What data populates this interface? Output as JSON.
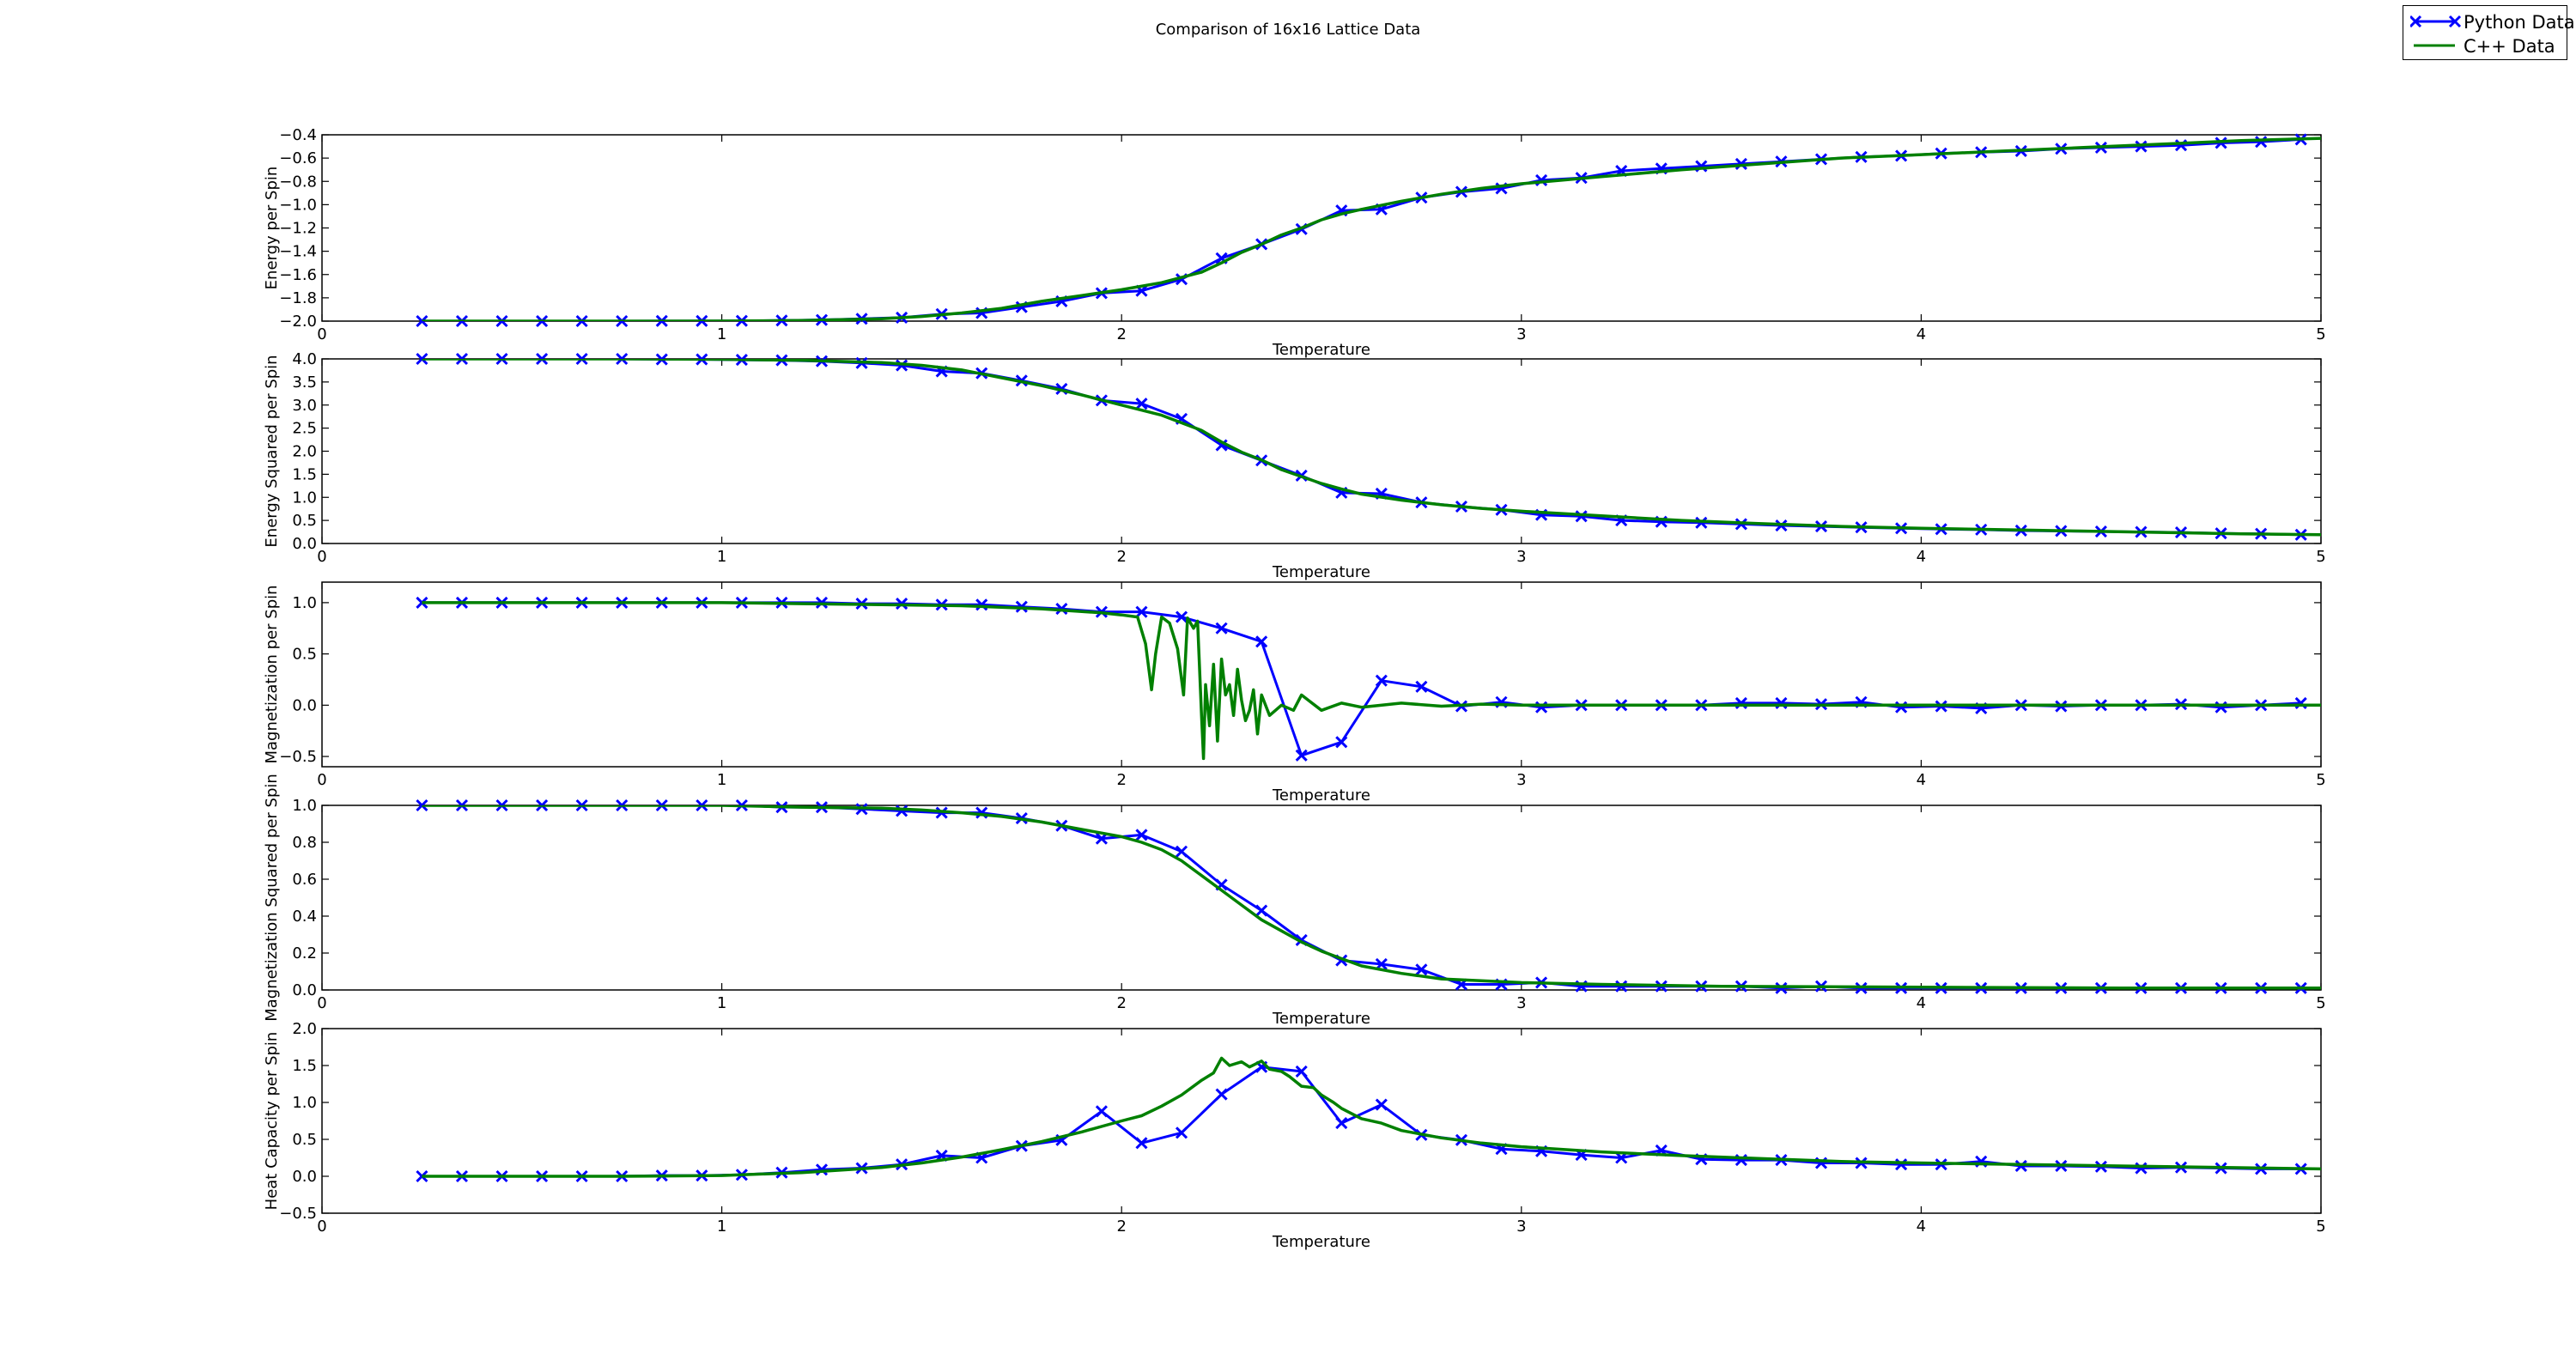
{
  "figure": {
    "title": "Comparison of 16x16 Lattice Data"
  },
  "legend": {
    "placement": "upper-right",
    "entries": [
      {
        "label": "Python Data",
        "color": "#0000ff",
        "marker": "x"
      },
      {
        "label": "C++ Data",
        "color": "#008000",
        "marker": "none"
      }
    ]
  },
  "chart_data": [
    {
      "type": "line",
      "xlabel": "Temperature",
      "ylabel": "Energy per Spin",
      "xlim": [
        0,
        5
      ],
      "ylim": [
        -2.0,
        -0.4
      ],
      "xticks": [
        "0",
        "1",
        "2",
        "3",
        "4",
        "5"
      ],
      "yticks": [
        "-2.0",
        "-1.8",
        "-1.6",
        "-1.4",
        "-1.2",
        "-1.0",
        "-0.8",
        "-0.6",
        "-0.4"
      ],
      "series": [
        {
          "name": "Python Data",
          "x": [
            0.25,
            0.35,
            0.45,
            0.55,
            0.65,
            0.75,
            0.85,
            0.95,
            1.05,
            1.15,
            1.25,
            1.35,
            1.45,
            1.55,
            1.65,
            1.75,
            1.85,
            1.95,
            2.05,
            2.15,
            2.25,
            2.35,
            2.45,
            2.55,
            2.65,
            2.75,
            2.85,
            2.95,
            3.05,
            3.15,
            3.25,
            3.35,
            3.45,
            3.55,
            3.65,
            3.75,
            3.85,
            3.95,
            4.05,
            4.15,
            4.25,
            4.35,
            4.45,
            4.55,
            4.65,
            4.75,
            4.85,
            4.95
          ],
          "y": [
            -2.0,
            -2.0,
            -2.0,
            -2.0,
            -2.0,
            -2.0,
            -1.999,
            -1.999,
            -1.998,
            -1.995,
            -1.99,
            -1.98,
            -1.97,
            -1.94,
            -1.93,
            -1.88,
            -1.83,
            -1.76,
            -1.74,
            -1.64,
            -1.46,
            -1.34,
            -1.21,
            -1.05,
            -1.04,
            -0.94,
            -0.89,
            -0.86,
            -0.79,
            -0.77,
            -0.71,
            -0.69,
            -0.67,
            -0.65,
            -0.63,
            -0.61,
            -0.59,
            -0.58,
            -0.56,
            -0.55,
            -0.54,
            -0.52,
            -0.51,
            -0.5,
            -0.49,
            -0.47,
            -0.46,
            -0.44
          ]
        },
        {
          "name": "C++ Data",
          "x": [
            0.25,
            0.5,
            0.75,
            1.0,
            1.2,
            1.4,
            1.5,
            1.6,
            1.7,
            1.8,
            1.9,
            2.0,
            2.1,
            2.2,
            2.25,
            2.3,
            2.35,
            2.4,
            2.45,
            2.5,
            2.55,
            2.6,
            2.7,
            2.8,
            2.9,
            3.0,
            3.2,
            3.4,
            3.6,
            3.8,
            4.0,
            4.2,
            4.4,
            4.6,
            4.8,
            5.0
          ],
          "y": [
            -2.0,
            -2.0,
            -2.0,
            -1.999,
            -1.995,
            -1.98,
            -1.96,
            -1.93,
            -1.89,
            -1.83,
            -1.78,
            -1.73,
            -1.67,
            -1.58,
            -1.5,
            -1.41,
            -1.34,
            -1.26,
            -1.2,
            -1.13,
            -1.08,
            -1.04,
            -0.97,
            -0.91,
            -0.86,
            -0.82,
            -0.76,
            -0.7,
            -0.65,
            -0.6,
            -0.57,
            -0.54,
            -0.51,
            -0.48,
            -0.45,
            -0.43
          ]
        }
      ]
    },
    {
      "type": "line",
      "xlabel": "Temperature",
      "ylabel": "Energy Squared per Spin",
      "xlim": [
        0,
        5
      ],
      "ylim": [
        0.0,
        4.0
      ],
      "xticks": [
        "0",
        "1",
        "2",
        "3",
        "4",
        "5"
      ],
      "yticks": [
        "0.0",
        "0.5",
        "1.0",
        "1.5",
        "2.0",
        "2.5",
        "3.0",
        "3.5",
        "4.0"
      ],
      "series": [
        {
          "name": "Python Data",
          "x": [
            0.25,
            0.35,
            0.45,
            0.55,
            0.65,
            0.75,
            0.85,
            0.95,
            1.05,
            1.15,
            1.25,
            1.35,
            1.45,
            1.55,
            1.65,
            1.75,
            1.85,
            1.95,
            2.05,
            2.15,
            2.25,
            2.35,
            2.45,
            2.55,
            2.65,
            2.75,
            2.85,
            2.95,
            3.05,
            3.15,
            3.25,
            3.35,
            3.45,
            3.55,
            3.65,
            3.75,
            3.85,
            3.95,
            4.05,
            4.15,
            4.25,
            4.35,
            4.45,
            4.55,
            4.65,
            4.75,
            4.85,
            4.95
          ],
          "y": [
            4.0,
            4.0,
            4.0,
            4.0,
            4.0,
            4.0,
            3.99,
            3.99,
            3.98,
            3.97,
            3.95,
            3.91,
            3.86,
            3.73,
            3.69,
            3.53,
            3.35,
            3.1,
            3.03,
            2.7,
            2.13,
            1.8,
            1.47,
            1.1,
            1.08,
            0.89,
            0.8,
            0.73,
            0.62,
            0.59,
            0.5,
            0.47,
            0.45,
            0.42,
            0.39,
            0.37,
            0.35,
            0.33,
            0.31,
            0.3,
            0.28,
            0.27,
            0.26,
            0.25,
            0.24,
            0.22,
            0.21,
            0.19
          ]
        },
        {
          "name": "C++ Data",
          "x": [
            0.25,
            0.5,
            0.75,
            1.0,
            1.2,
            1.4,
            1.5,
            1.6,
            1.7,
            1.8,
            1.9,
            2.0,
            2.1,
            2.2,
            2.25,
            2.3,
            2.35,
            2.4,
            2.45,
            2.5,
            2.55,
            2.6,
            2.7,
            2.8,
            2.9,
            3.0,
            3.2,
            3.4,
            3.6,
            3.8,
            4.0,
            4.2,
            4.4,
            4.6,
            4.8,
            5.0
          ],
          "y": [
            4.0,
            4.0,
            4.0,
            3.99,
            3.97,
            3.92,
            3.86,
            3.76,
            3.59,
            3.42,
            3.22,
            3.0,
            2.78,
            2.45,
            2.2,
            1.98,
            1.81,
            1.6,
            1.45,
            1.3,
            1.18,
            1.07,
            0.94,
            0.84,
            0.76,
            0.7,
            0.6,
            0.5,
            0.43,
            0.37,
            0.33,
            0.3,
            0.27,
            0.24,
            0.21,
            0.19
          ]
        }
      ]
    },
    {
      "type": "line",
      "xlabel": "Temperature",
      "ylabel": "Magnetization per Spin",
      "xlim": [
        0,
        5
      ],
      "ylim": [
        -0.6,
        1.2
      ],
      "xticks": [
        "0",
        "1",
        "2",
        "3",
        "4",
        "5"
      ],
      "yticks": [
        "-0.5",
        "0.0",
        "0.5",
        "1.0"
      ],
      "series": [
        {
          "name": "Python Data",
          "x": [
            0.25,
            0.35,
            0.45,
            0.55,
            0.65,
            0.75,
            0.85,
            0.95,
            1.05,
            1.15,
            1.25,
            1.35,
            1.45,
            1.55,
            1.65,
            1.75,
            1.85,
            1.95,
            2.05,
            2.15,
            2.25,
            2.35,
            2.45,
            2.55,
            2.65,
            2.75,
            2.85,
            2.95,
            3.05,
            3.15,
            3.25,
            3.35,
            3.45,
            3.55,
            3.65,
            3.75,
            3.85,
            3.95,
            4.05,
            4.15,
            4.25,
            4.35,
            4.45,
            4.55,
            4.65,
            4.75,
            4.85,
            4.95
          ],
          "y": [
            1.0,
            1.0,
            1.0,
            1.0,
            1.0,
            1.0,
            1.0,
            1.0,
            1.0,
            1.0,
            1.0,
            0.99,
            0.99,
            0.98,
            0.98,
            0.96,
            0.94,
            0.91,
            0.91,
            0.86,
            0.75,
            0.62,
            -0.49,
            -0.36,
            0.24,
            0.18,
            -0.01,
            0.03,
            -0.02,
            0.0,
            0.0,
            0.0,
            0.0,
            0.02,
            0.02,
            0.01,
            0.03,
            -0.02,
            -0.01,
            -0.03,
            0.0,
            -0.01,
            0.0,
            0.0,
            0.01,
            -0.02,
            0.0,
            0.02
          ]
        },
        {
          "name": "C++ Data",
          "x": [
            0.25,
            0.5,
            0.75,
            1.0,
            1.2,
            1.4,
            1.6,
            1.8,
            1.95,
            2.0,
            2.04,
            2.06,
            2.075,
            2.085,
            2.1,
            2.12,
            2.14,
            2.155,
            2.165,
            2.18,
            2.19,
            2.2,
            2.205,
            2.21,
            2.22,
            2.23,
            2.24,
            2.25,
            2.26,
            2.27,
            2.28,
            2.29,
            2.3,
            2.31,
            2.32,
            2.33,
            2.34,
            2.35,
            2.37,
            2.4,
            2.43,
            2.45,
            2.5,
            2.55,
            2.6,
            2.7,
            2.8,
            2.9,
            3.0,
            3.2,
            3.5,
            4.0,
            4.5,
            5.0
          ],
          "y": [
            1.0,
            1.0,
            1.0,
            1.0,
            0.99,
            0.98,
            0.97,
            0.94,
            0.9,
            0.88,
            0.86,
            0.6,
            0.15,
            0.5,
            0.86,
            0.8,
            0.55,
            0.1,
            0.85,
            0.75,
            0.82,
            -0.1,
            -0.52,
            0.2,
            -0.2,
            0.4,
            -0.35,
            0.45,
            0.1,
            0.2,
            -0.1,
            0.35,
            0.05,
            -0.15,
            -0.05,
            0.15,
            -0.28,
            0.1,
            -0.1,
            0.0,
            -0.05,
            0.1,
            -0.05,
            0.02,
            -0.02,
            0.02,
            -0.01,
            0.01,
            0.0,
            0.0,
            0.0,
            0.0,
            0.0,
            0.0
          ]
        }
      ]
    },
    {
      "type": "line",
      "xlabel": "Temperature",
      "ylabel": "Magnetization Squared per Spin",
      "xlim": [
        0,
        5
      ],
      "ylim": [
        0.0,
        1.0
      ],
      "xticks": [
        "0",
        "1",
        "2",
        "3",
        "4",
        "5"
      ],
      "yticks": [
        "0.0",
        "0.2",
        "0.4",
        "0.6",
        "0.8",
        "1.0"
      ],
      "series": [
        {
          "name": "Python Data",
          "x": [
            0.25,
            0.35,
            0.45,
            0.55,
            0.65,
            0.75,
            0.85,
            0.95,
            1.05,
            1.15,
            1.25,
            1.35,
            1.45,
            1.55,
            1.65,
            1.75,
            1.85,
            1.95,
            2.05,
            2.15,
            2.25,
            2.35,
            2.45,
            2.55,
            2.65,
            2.75,
            2.85,
            2.95,
            3.05,
            3.15,
            3.25,
            3.35,
            3.45,
            3.55,
            3.65,
            3.75,
            3.85,
            3.95,
            4.05,
            4.15,
            4.25,
            4.35,
            4.45,
            4.55,
            4.65,
            4.75,
            4.85,
            4.95
          ],
          "y": [
            1.0,
            1.0,
            1.0,
            1.0,
            1.0,
            1.0,
            1.0,
            1.0,
            1.0,
            0.99,
            0.99,
            0.98,
            0.97,
            0.96,
            0.96,
            0.93,
            0.89,
            0.82,
            0.84,
            0.75,
            0.57,
            0.43,
            0.27,
            0.16,
            0.14,
            0.11,
            0.03,
            0.03,
            0.04,
            0.02,
            0.02,
            0.02,
            0.02,
            0.02,
            0.01,
            0.02,
            0.01,
            0.01,
            0.01,
            0.01,
            0.01,
            0.01,
            0.01,
            0.01,
            0.01,
            0.01,
            0.01,
            0.01
          ]
        },
        {
          "name": "C++ Data",
          "x": [
            0.25,
            0.5,
            0.75,
            1.0,
            1.2,
            1.4,
            1.5,
            1.6,
            1.7,
            1.8,
            1.9,
            2.0,
            2.05,
            2.1,
            2.15,
            2.2,
            2.25,
            2.3,
            2.35,
            2.4,
            2.45,
            2.5,
            2.55,
            2.6,
            2.7,
            2.8,
            2.9,
            3.0,
            3.2,
            3.5,
            4.0,
            4.5,
            5.0
          ],
          "y": [
            1.0,
            1.0,
            1.0,
            1.0,
            0.99,
            0.985,
            0.975,
            0.96,
            0.94,
            0.91,
            0.87,
            0.83,
            0.8,
            0.76,
            0.7,
            0.62,
            0.54,
            0.46,
            0.38,
            0.32,
            0.26,
            0.21,
            0.17,
            0.13,
            0.09,
            0.06,
            0.05,
            0.04,
            0.03,
            0.02,
            0.015,
            0.01,
            0.01
          ]
        }
      ]
    },
    {
      "type": "line",
      "xlabel": "Temperature",
      "ylabel": "Heat Capacity per Spin",
      "xlim": [
        0,
        5
      ],
      "ylim": [
        -0.5,
        2.0
      ],
      "xticks": [
        "0",
        "1",
        "2",
        "3",
        "4",
        "5"
      ],
      "yticks": [
        "-0.5",
        "0.0",
        "0.5",
        "1.0",
        "1.5",
        "2.0"
      ],
      "series": [
        {
          "name": "Python Data",
          "x": [
            0.25,
            0.35,
            0.45,
            0.55,
            0.65,
            0.75,
            0.85,
            0.95,
            1.05,
            1.15,
            1.25,
            1.35,
            1.45,
            1.55,
            1.65,
            1.75,
            1.85,
            1.95,
            2.05,
            2.15,
            2.25,
            2.35,
            2.45,
            2.55,
            2.65,
            2.75,
            2.85,
            2.95,
            3.05,
            3.15,
            3.25,
            3.35,
            3.45,
            3.55,
            3.65,
            3.75,
            3.85,
            3.95,
            4.05,
            4.15,
            4.25,
            4.35,
            4.45,
            4.55,
            4.65,
            4.75,
            4.85,
            4.95
          ],
          "y": [
            0.0,
            0.0,
            0.0,
            0.0,
            0.0,
            0.0,
            0.01,
            0.01,
            0.02,
            0.05,
            0.09,
            0.11,
            0.16,
            0.28,
            0.25,
            0.41,
            0.49,
            0.88,
            0.45,
            0.59,
            1.11,
            1.48,
            1.42,
            0.72,
            0.97,
            0.56,
            0.49,
            0.37,
            0.34,
            0.29,
            0.25,
            0.35,
            0.23,
            0.22,
            0.22,
            0.18,
            0.18,
            0.16,
            0.16,
            0.2,
            0.14,
            0.14,
            0.13,
            0.11,
            0.12,
            0.11,
            0.1,
            0.1
          ]
        },
        {
          "name": "C++ Data",
          "x": [
            0.25,
            0.5,
            0.75,
            1.0,
            1.2,
            1.4,
            1.5,
            1.6,
            1.7,
            1.8,
            1.9,
            2.0,
            2.05,
            2.1,
            2.15,
            2.2,
            2.23,
            2.25,
            2.27,
            2.3,
            2.32,
            2.35,
            2.37,
            2.4,
            2.42,
            2.45,
            2.48,
            2.5,
            2.53,
            2.55,
            2.6,
            2.65,
            2.7,
            2.8,
            2.9,
            3.0,
            3.2,
            3.4,
            3.6,
            3.8,
            4.0,
            4.5,
            5.0
          ],
          "y": [
            0.0,
            0.0,
            0.0,
            0.01,
            0.05,
            0.12,
            0.18,
            0.26,
            0.36,
            0.47,
            0.6,
            0.75,
            0.82,
            0.95,
            1.1,
            1.3,
            1.4,
            1.6,
            1.5,
            1.55,
            1.48,
            1.56,
            1.45,
            1.42,
            1.35,
            1.22,
            1.2,
            1.1,
            1.0,
            0.92,
            0.78,
            0.72,
            0.62,
            0.52,
            0.45,
            0.4,
            0.33,
            0.28,
            0.24,
            0.2,
            0.18,
            0.14,
            0.1
          ]
        }
      ]
    }
  ]
}
